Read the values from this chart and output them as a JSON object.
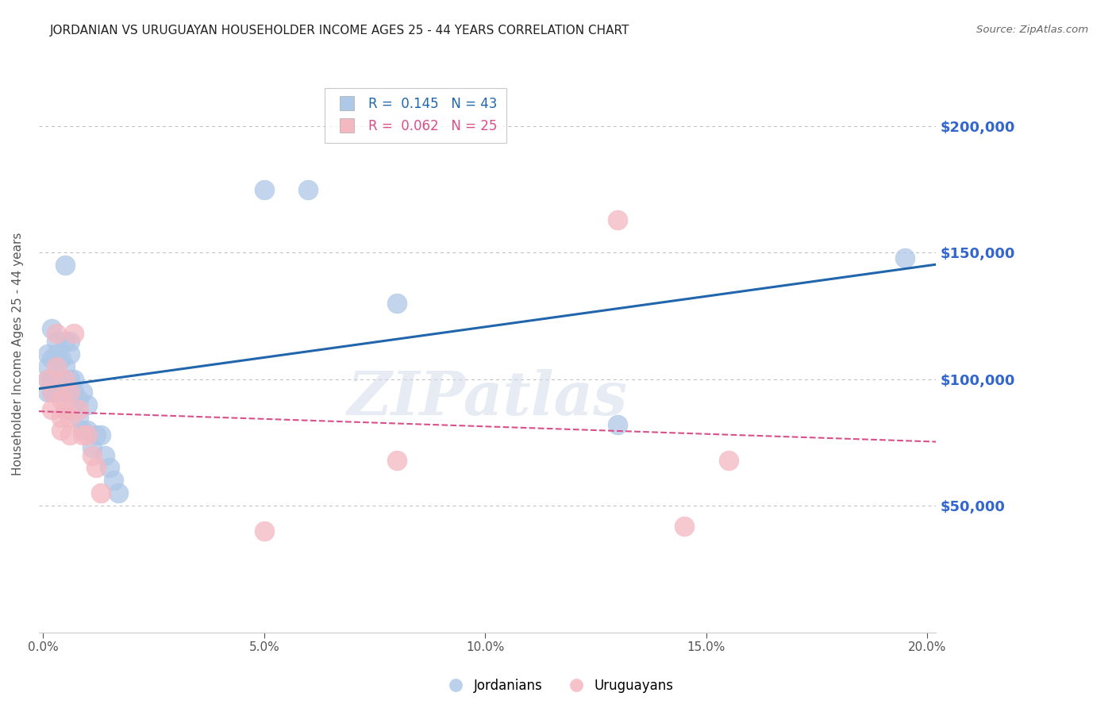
{
  "title": "JORDANIAN VS URUGUAYAN HOUSEHOLDER INCOME AGES 25 - 44 YEARS CORRELATION CHART",
  "source": "Source: ZipAtlas.com",
  "ylabel": "Householder Income Ages 25 - 44 years",
  "ylim": [
    0,
    220000
  ],
  "xlim": [
    -0.001,
    0.202
  ],
  "jordanian_R": 0.145,
  "jordanian_N": 43,
  "uruguayan_R": 0.062,
  "uruguayan_N": 25,
  "jordanian_color": "#aec8e8",
  "uruguayan_color": "#f4b8c1",
  "jordanian_line_color": "#2166ac",
  "uruguayan_line_color": "#d94f8a",
  "background_color": "#ffffff",
  "grid_color": "#bbbbbb",
  "title_color": "#222222",
  "right_label_color": "#3366cc",
  "watermark": "ZIPatlas",
  "jordanian_x": [
    0.001,
    0.001,
    0.001,
    0.001,
    0.002,
    0.002,
    0.002,
    0.002,
    0.003,
    0.003,
    0.003,
    0.003,
    0.004,
    0.004,
    0.005,
    0.005,
    0.005,
    0.005,
    0.006,
    0.006,
    0.006,
    0.006,
    0.006,
    0.007,
    0.007,
    0.008,
    0.008,
    0.009,
    0.009,
    0.01,
    0.01,
    0.011,
    0.012,
    0.013,
    0.014,
    0.015,
    0.016,
    0.017,
    0.05,
    0.06,
    0.08,
    0.13,
    0.195
  ],
  "jordanian_y": [
    105000,
    110000,
    100000,
    95000,
    120000,
    108000,
    100000,
    95000,
    115000,
    110000,
    100000,
    95000,
    108000,
    100000,
    145000,
    115000,
    105000,
    95000,
    115000,
    110000,
    100000,
    95000,
    88000,
    100000,
    95000,
    92000,
    85000,
    95000,
    80000,
    90000,
    80000,
    73000,
    78000,
    78000,
    70000,
    65000,
    60000,
    55000,
    175000,
    175000,
    130000,
    82000,
    148000
  ],
  "uruguayan_x": [
    0.001,
    0.002,
    0.002,
    0.003,
    0.003,
    0.004,
    0.004,
    0.004,
    0.005,
    0.005,
    0.006,
    0.006,
    0.006,
    0.007,
    0.008,
    0.009,
    0.01,
    0.011,
    0.012,
    0.013,
    0.05,
    0.08,
    0.13,
    0.145,
    0.155
  ],
  "uruguayan_y": [
    100000,
    95000,
    88000,
    118000,
    105000,
    92000,
    85000,
    80000,
    100000,
    88000,
    95000,
    85000,
    78000,
    118000,
    88000,
    78000,
    78000,
    70000,
    65000,
    55000,
    40000,
    68000,
    163000,
    42000,
    68000
  ],
  "xlabel_ticks": [
    0.0,
    0.05,
    0.1,
    0.15,
    0.2
  ],
  "ylabel_right_ticks": [
    0,
    50000,
    100000,
    150000,
    200000
  ],
  "ylabel_right_labels": [
    "",
    "$50,000",
    "$100,000",
    "$150,000",
    "$200,000"
  ]
}
